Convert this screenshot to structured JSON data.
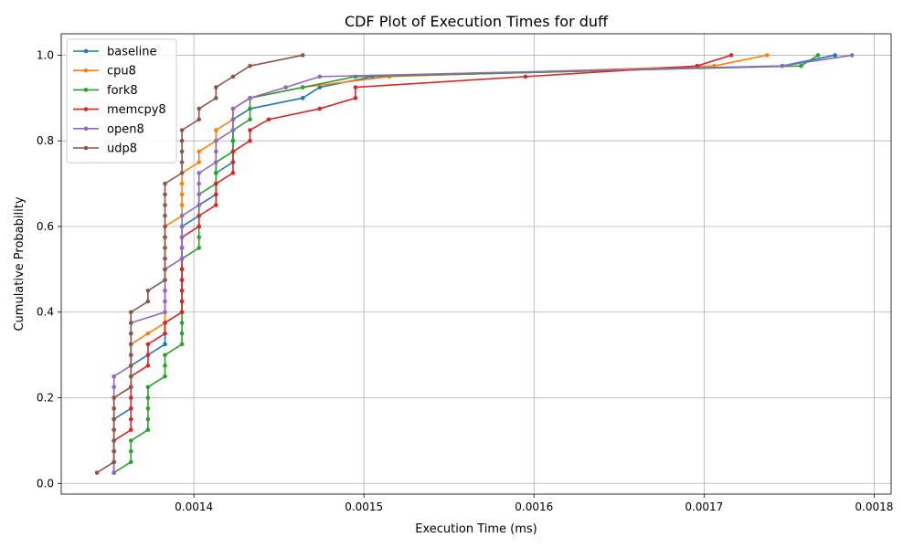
{
  "chart_data": {
    "type": "line",
    "title": "CDF Plot of Execution Times for duff",
    "xlabel": "Execution Time (ms)",
    "ylabel": "Cumulative Probability",
    "xlim": [
      0.001322,
      0.00181
    ],
    "ylim": [
      -0.025,
      1.05
    ],
    "xticks": [
      0.0014,
      0.0015,
      0.0016,
      0.0017,
      0.0018
    ],
    "xtick_labels": [
      "0.0014",
      "0.0015",
      "0.0016",
      "0.0017",
      "0.0018"
    ],
    "yticks": [
      0.0,
      0.2,
      0.4,
      0.6,
      0.8,
      1.0
    ],
    "ytick_labels": [
      "0.0",
      "0.2",
      "0.4",
      "0.6",
      "0.8",
      "1.0"
    ],
    "grid": true,
    "legend_position": "top-left",
    "series": [
      {
        "name": "baseline",
        "color": "#1f77b4",
        "x": [
          0.001353,
          0.001353,
          0.001353,
          0.001353,
          0.001353,
          0.001353,
          0.001363,
          0.001363,
          0.001363,
          0.001363,
          0.001363,
          0.001373,
          0.001383,
          0.001383,
          0.001383,
          0.001393,
          0.001393,
          0.001393,
          0.001393,
          0.001393,
          0.001393,
          0.001393,
          0.001393,
          0.001393,
          0.001403,
          0.001403,
          0.001413,
          0.001413,
          0.001413,
          0.001423,
          0.001423,
          0.001423,
          0.001423,
          0.001423,
          0.001433,
          0.001464,
          0.001474,
          0.001505,
          0.001746,
          0.001777
        ],
        "y": [
          0.025,
          0.05,
          0.075,
          0.1,
          0.125,
          0.15,
          0.175,
          0.2,
          0.225,
          0.25,
          0.275,
          0.3,
          0.325,
          0.35,
          0.375,
          0.4,
          0.425,
          0.45,
          0.475,
          0.5,
          0.525,
          0.55,
          0.575,
          0.6,
          0.625,
          0.65,
          0.675,
          0.7,
          0.725,
          0.75,
          0.775,
          0.8,
          0.825,
          0.85,
          0.875,
          0.9,
          0.925,
          0.95,
          0.975,
          1.0
        ]
      },
      {
        "name": "cpu8",
        "color": "#ff7f0e",
        "x": [
          0.001353,
          0.001353,
          0.001353,
          0.001353,
          0.001353,
          0.001353,
          0.001353,
          0.001353,
          0.001363,
          0.001363,
          0.001363,
          0.001363,
          0.001363,
          0.001373,
          0.001383,
          0.001383,
          0.001383,
          0.001383,
          0.001383,
          0.001383,
          0.001383,
          0.001383,
          0.001383,
          0.001383,
          0.001393,
          0.001393,
          0.001393,
          0.001393,
          0.001393,
          0.001403,
          0.001403,
          0.001413,
          0.001413,
          0.001423,
          0.001423,
          0.001433,
          0.001464,
          0.001515,
          0.001706,
          0.001737
        ],
        "y": [
          0.025,
          0.05,
          0.075,
          0.1,
          0.125,
          0.15,
          0.175,
          0.2,
          0.225,
          0.25,
          0.275,
          0.3,
          0.325,
          0.35,
          0.375,
          0.4,
          0.425,
          0.45,
          0.475,
          0.5,
          0.525,
          0.55,
          0.575,
          0.6,
          0.625,
          0.65,
          0.675,
          0.7,
          0.725,
          0.75,
          0.775,
          0.8,
          0.825,
          0.85,
          0.875,
          0.9,
          0.925,
          0.95,
          0.975,
          1.0
        ]
      },
      {
        "name": "fork8",
        "color": "#2ca02c",
        "x": [
          0.001353,
          0.001363,
          0.001363,
          0.001363,
          0.001373,
          0.001373,
          0.001373,
          0.001373,
          0.001373,
          0.001383,
          0.001383,
          0.001383,
          0.001393,
          0.001393,
          0.001393,
          0.001393,
          0.001393,
          0.001393,
          0.001393,
          0.001393,
          0.001393,
          0.001403,
          0.001403,
          0.001403,
          0.001403,
          0.001403,
          0.001403,
          0.001413,
          0.001413,
          0.001413,
          0.001423,
          0.001423,
          0.001423,
          0.001433,
          0.001433,
          0.001433,
          0.001464,
          0.001495,
          0.001757,
          0.001767
        ],
        "y": [
          0.025,
          0.05,
          0.075,
          0.1,
          0.125,
          0.15,
          0.175,
          0.2,
          0.225,
          0.25,
          0.275,
          0.3,
          0.325,
          0.35,
          0.375,
          0.4,
          0.425,
          0.45,
          0.475,
          0.5,
          0.525,
          0.55,
          0.575,
          0.6,
          0.625,
          0.65,
          0.675,
          0.7,
          0.725,
          0.75,
          0.775,
          0.8,
          0.825,
          0.85,
          0.875,
          0.9,
          0.925,
          0.95,
          0.975,
          1.0
        ]
      },
      {
        "name": "memcpy8",
        "color": "#d62728",
        "x": [
          0.001353,
          0.001353,
          0.001353,
          0.001353,
          0.001363,
          0.001363,
          0.001363,
          0.001363,
          0.001363,
          0.001363,
          0.001373,
          0.001373,
          0.001373,
          0.001383,
          0.001383,
          0.001393,
          0.001393,
          0.001393,
          0.001393,
          0.001393,
          0.001393,
          0.001393,
          0.001393,
          0.001403,
          0.001403,
          0.001413,
          0.001413,
          0.001413,
          0.001423,
          0.001423,
          0.001423,
          0.001433,
          0.001433,
          0.001444,
          0.001474,
          0.001495,
          0.001495,
          0.001595,
          0.001696,
          0.001716
        ],
        "y": [
          0.025,
          0.05,
          0.075,
          0.1,
          0.125,
          0.15,
          0.175,
          0.2,
          0.225,
          0.25,
          0.275,
          0.3,
          0.325,
          0.35,
          0.375,
          0.4,
          0.425,
          0.45,
          0.475,
          0.5,
          0.525,
          0.55,
          0.575,
          0.6,
          0.625,
          0.65,
          0.675,
          0.7,
          0.725,
          0.75,
          0.775,
          0.8,
          0.825,
          0.85,
          0.875,
          0.9,
          0.925,
          0.95,
          0.975,
          1.0
        ]
      },
      {
        "name": "open8",
        "color": "#9467bd",
        "x": [
          0.001353,
          0.001353,
          0.001353,
          0.001353,
          0.001353,
          0.001353,
          0.001353,
          0.001353,
          0.001353,
          0.001353,
          0.001363,
          0.001363,
          0.001363,
          0.001363,
          0.001363,
          0.001383,
          0.001383,
          0.001383,
          0.001383,
          0.001383,
          0.001393,
          0.001393,
          0.001393,
          0.001393,
          0.001393,
          0.001403,
          0.001403,
          0.001403,
          0.001403,
          0.001413,
          0.001413,
          0.001413,
          0.001423,
          0.001423,
          0.001423,
          0.001433,
          0.001454,
          0.001474,
          0.001746,
          0.001787
        ],
        "y": [
          0.025,
          0.05,
          0.075,
          0.1,
          0.125,
          0.15,
          0.175,
          0.2,
          0.225,
          0.25,
          0.275,
          0.3,
          0.325,
          0.35,
          0.375,
          0.4,
          0.425,
          0.45,
          0.475,
          0.5,
          0.525,
          0.55,
          0.575,
          0.6,
          0.625,
          0.65,
          0.675,
          0.7,
          0.725,
          0.75,
          0.775,
          0.8,
          0.825,
          0.85,
          0.875,
          0.9,
          0.925,
          0.95,
          0.975,
          1.0
        ]
      },
      {
        "name": "udp8",
        "color": "#8c564b",
        "x": [
          0.001343,
          0.001353,
          0.001353,
          0.001353,
          0.001353,
          0.001353,
          0.001353,
          0.001353,
          0.001363,
          0.001363,
          0.001363,
          0.001363,
          0.001363,
          0.001363,
          0.001363,
          0.001363,
          0.001373,
          0.001373,
          0.001383,
          0.001383,
          0.001383,
          0.001383,
          0.001383,
          0.001383,
          0.001383,
          0.001383,
          0.001383,
          0.001383,
          0.001393,
          0.001393,
          0.001393,
          0.001393,
          0.001393,
          0.001403,
          0.001403,
          0.001413,
          0.001413,
          0.001423,
          0.001433,
          0.001464
        ],
        "y": [
          0.025,
          0.05,
          0.075,
          0.1,
          0.125,
          0.15,
          0.175,
          0.2,
          0.225,
          0.25,
          0.275,
          0.3,
          0.325,
          0.35,
          0.375,
          0.4,
          0.425,
          0.45,
          0.475,
          0.5,
          0.525,
          0.55,
          0.575,
          0.6,
          0.625,
          0.65,
          0.675,
          0.7,
          0.725,
          0.75,
          0.775,
          0.8,
          0.825,
          0.85,
          0.875,
          0.9,
          0.925,
          0.95,
          0.975,
          1.0
        ]
      }
    ]
  }
}
